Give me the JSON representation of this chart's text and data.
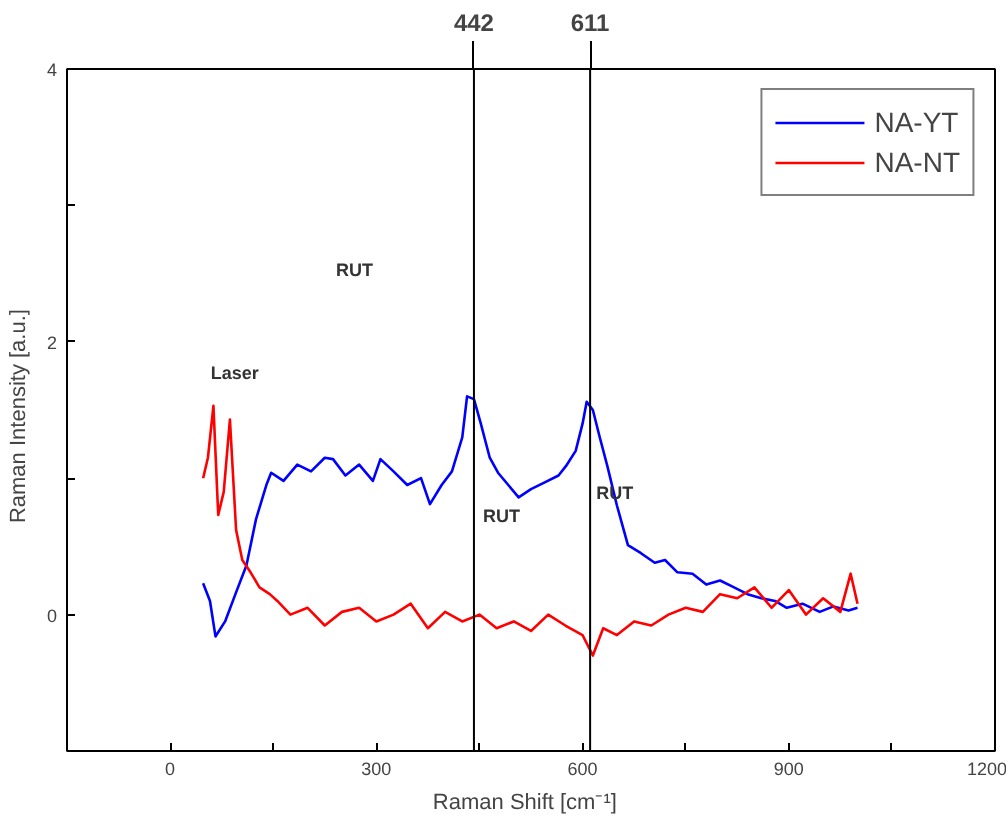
{
  "chart_data": {
    "type": "line",
    "xlabel": "Raman Shift   [cm⁻¹]",
    "ylabel": "Raman Intensity   [a.u.]",
    "xlim": [
      -150,
      1200
    ],
    "ylim": [
      -1,
      4
    ],
    "xticks": [
      0,
      {
        "value": 150,
        "label": null
      },
      300,
      {
        "value": 450,
        "label": null
      },
      600,
      {
        "value": 750,
        "label": null
      },
      900,
      {
        "value": 1050,
        "label": null
      },
      1200
    ],
    "yticks": [
      0,
      {
        "value": 1,
        "label": null
      },
      2,
      {
        "value": 3,
        "label": null
      },
      4
    ],
    "grid": false,
    "legend": "top right",
    "marker": "none",
    "line_style": "solid",
    "ref_lines": [
      {
        "axis": "x",
        "value": 442,
        "label": "442",
        "color": "#000000"
      },
      {
        "axis": "x",
        "value": 611,
        "label": "611",
        "color": "#000000"
      }
    ],
    "annotations": [
      "RUT",
      "Laser",
      {
        "text": "RUT",
        "x": 455,
        "y": 0.65
      },
      {
        "text": "RUT",
        "x": 620,
        "y": 0.82
      }
    ],
    "series": [
      {
        "name": "NA-YT",
        "color": "#0000ff",
        "x": [
          48,
          58,
          66,
          80,
          95,
          111,
          125,
          140,
          147,
          165,
          185,
          205,
          225,
          237,
          255,
          275,
          295,
          306,
          325,
          345,
          365,
          378,
          395,
          410,
          425,
          432,
          442,
          452,
          465,
          477,
          492,
          507,
          525,
          545,
          565,
          576,
          590,
          600,
          606,
          615,
          625,
          636,
          650,
          666,
          685,
          705,
          720,
          738,
          760,
          780,
          800,
          816,
          840,
          860,
          880,
          897,
          920,
          945,
          965,
          987,
          1000
        ],
        "values": [
          0.23,
          0.1,
          -0.16,
          -0.05,
          0.15,
          0.36,
          0.7,
          0.95,
          1.04,
          0.98,
          1.1,
          1.05,
          1.15,
          1.14,
          1.02,
          1.1,
          0.98,
          1.14,
          1.05,
          0.95,
          1.0,
          0.81,
          0.95,
          1.05,
          1.3,
          1.6,
          1.58,
          1.4,
          1.15,
          1.04,
          0.95,
          0.86,
          0.92,
          0.97,
          1.02,
          1.09,
          1.2,
          1.4,
          1.56,
          1.5,
          1.3,
          1.09,
          0.8,
          0.51,
          0.45,
          0.38,
          0.4,
          0.31,
          0.3,
          0.22,
          0.25,
          0.21,
          0.15,
          0.12,
          0.1,
          0.05,
          0.08,
          0.02,
          0.06,
          0.03,
          0.05
        ]
      },
      {
        "name": "NA-NT",
        "color": "#ff0000",
        "x": [
          48,
          55,
          63,
          70,
          78,
          87,
          96,
          105,
          117,
          130,
          145,
          156,
          175,
          200,
          225,
          250,
          275,
          300,
          325,
          350,
          375,
          400,
          425,
          450,
          475,
          500,
          525,
          550,
          575,
          600,
          615,
          630,
          650,
          675,
          700,
          725,
          750,
          775,
          800,
          825,
          850,
          875,
          900,
          925,
          950,
          975,
          990,
          1000
        ],
        "values": [
          1.0,
          1.15,
          1.53,
          0.73,
          0.9,
          1.43,
          0.62,
          0.4,
          0.31,
          0.2,
          0.15,
          0.1,
          0.0,
          0.05,
          -0.08,
          0.02,
          0.05,
          -0.05,
          0.0,
          0.08,
          -0.1,
          0.02,
          -0.05,
          0.0,
          -0.1,
          -0.05,
          -0.12,
          0.0,
          -0.08,
          -0.15,
          -0.3,
          -0.1,
          -0.15,
          -0.05,
          -0.08,
          0.0,
          0.05,
          0.02,
          0.15,
          0.12,
          0.2,
          0.05,
          0.18,
          0.0,
          0.12,
          0.02,
          0.3,
          0.08
        ]
      }
    ]
  }
}
